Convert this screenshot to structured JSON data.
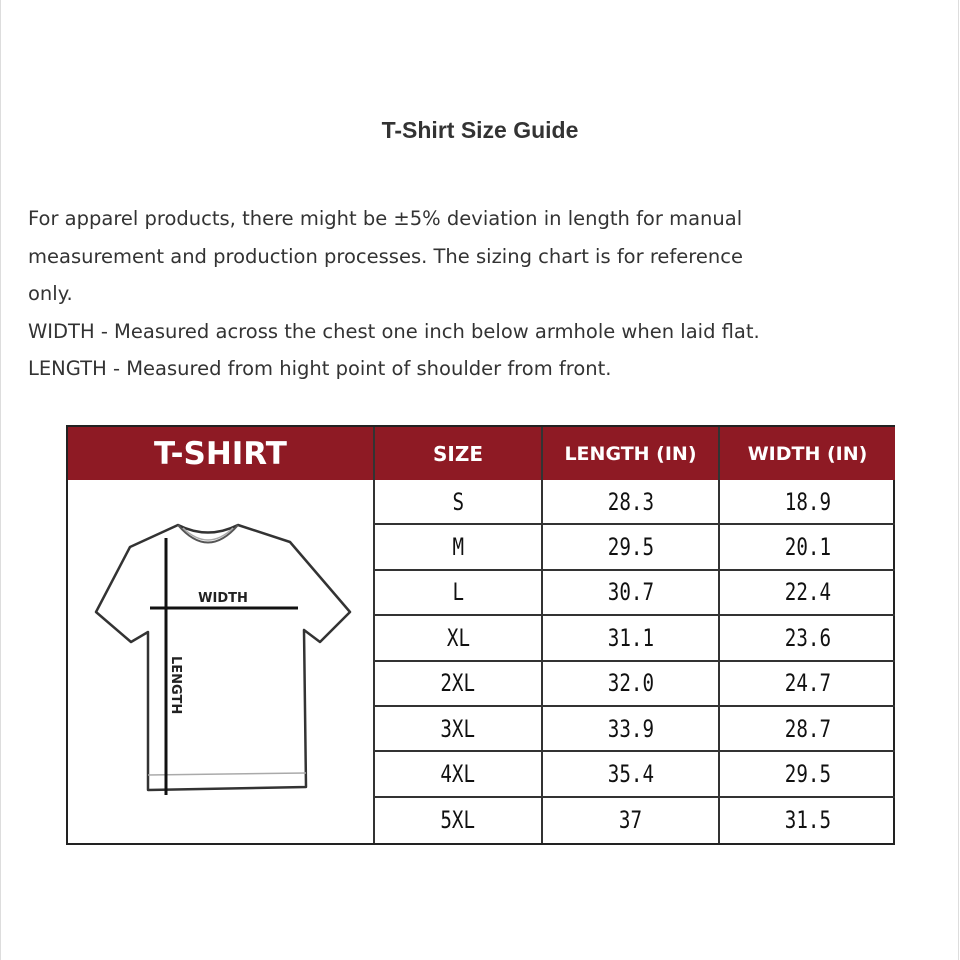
{
  "title": "T-Shirt Size Guide",
  "description": [
    "For apparel products, there might be ±5% deviation in length for manual",
    "measurement and production processes. The sizing chart is for reference",
    "only.",
    "WIDTH - Measured across the chest one inch below armhole when laid flat.",
    "LENGTH - Measured from hight point of shoulder from front."
  ],
  "table": {
    "header_color": "#8e1a24",
    "headers": [
      "T-SHIRT",
      "SIZE",
      "LENGTH (IN)",
      "WIDTH (IN)"
    ],
    "diagram_labels": {
      "width": "WIDTH",
      "length": "LENGTH"
    },
    "rows": [
      {
        "size": "S",
        "length": "28.3",
        "width": "18.9"
      },
      {
        "size": "M",
        "length": "29.5",
        "width": "20.1"
      },
      {
        "size": "L",
        "length": "30.7",
        "width": "22.4"
      },
      {
        "size": "XL",
        "length": "31.1",
        "width": "23.6"
      },
      {
        "size": "2XL",
        "length": "32.0",
        "width": "24.7"
      },
      {
        "size": "3XL",
        "length": "33.9",
        "width": "28.7"
      },
      {
        "size": "4XL",
        "length": "35.4",
        "width": "29.5"
      },
      {
        "size": "5XL",
        "length": "37",
        "width": "31.5"
      }
    ]
  }
}
